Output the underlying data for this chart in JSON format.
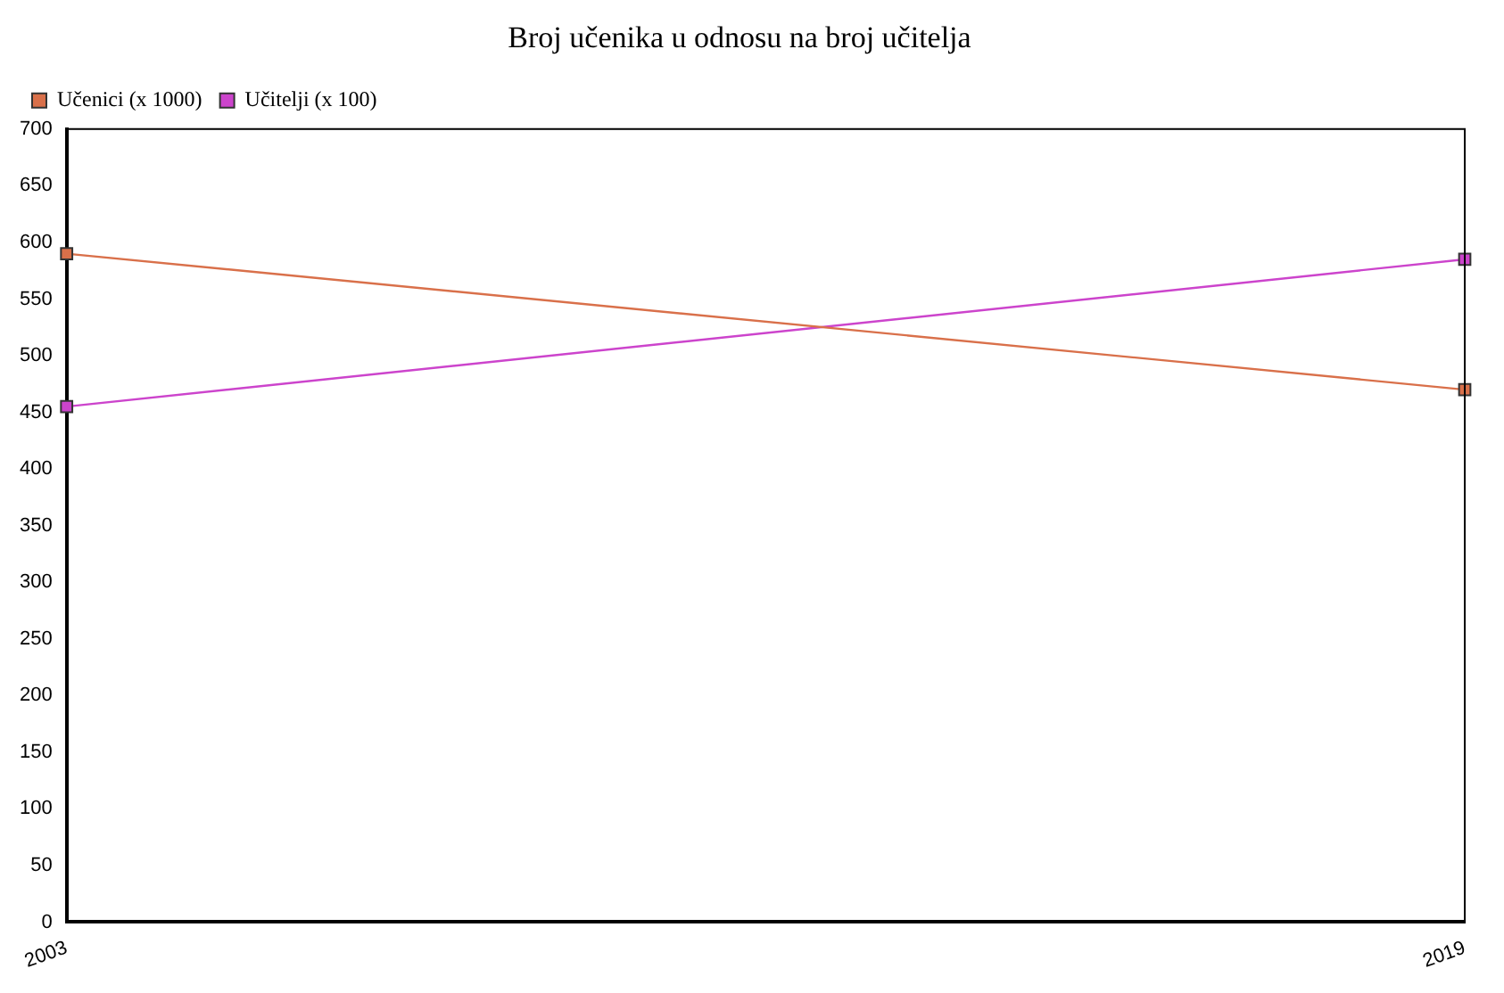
{
  "chart_data": {
    "type": "line",
    "title": "Broj učenika u odnosu na broj učitelja",
    "categories": [
      "2003",
      "2019"
    ],
    "series": [
      {
        "name": "Učenici (x 1000)",
        "color": "#d9704a",
        "values": [
          590,
          470
        ]
      },
      {
        "name": "Učitelji (x 100)",
        "color": "#cc44cc",
        "values": [
          455,
          585
        ]
      }
    ],
    "ylim": [
      0,
      700
    ],
    "yticks": [
      0,
      50,
      100,
      150,
      200,
      250,
      300,
      350,
      400,
      450,
      500,
      550,
      600,
      650,
      700
    ],
    "grid": false,
    "legend": "top left",
    "marker": "square",
    "line_style": "solid"
  }
}
